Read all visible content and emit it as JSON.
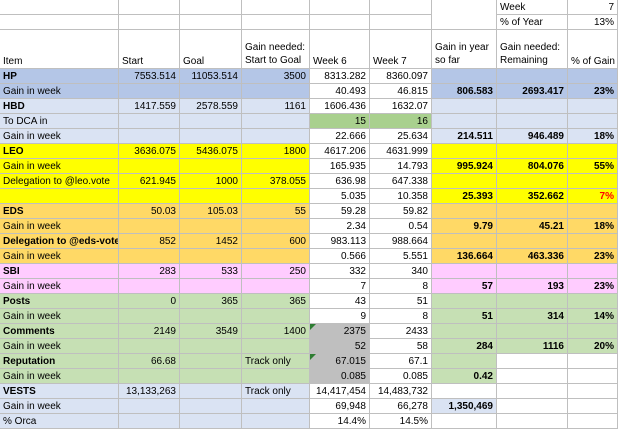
{
  "colors": {
    "blue": "#b4c6e7",
    "lightblue": "#dae3f3",
    "yellow": "#ffff00",
    "orange": "#ffd966",
    "pink": "#ffccff",
    "green": "#c6e0b4",
    "brightgreen": "#a9d08e",
    "gray": "#bfbfbf",
    "white": "#ffffff",
    "red": "#ff0000",
    "gridline": "#bfbfbf"
  },
  "summary": {
    "week_label": "Week",
    "week_value": "7",
    "pct_year_label": "% of Year",
    "pct_year_value": "13%"
  },
  "headers": {
    "item": "Item",
    "start": "Start",
    "goal": "Goal",
    "gain_needed_1": "Gain needed:",
    "gain_needed_2": "Start to Goal",
    "week6": "Week 6",
    "week7": "Week 7",
    "gain_year_1": "Gain in year",
    "gain_year_2": "so far",
    "gain_rem_1": "Gain needed:",
    "gain_rem_2": "Remaining",
    "pct_gain": "% of Gain"
  },
  "rows": [
    {
      "item": "HP",
      "start": "7553.514",
      "goal": "11053.514",
      "needed": "3500",
      "w6": "8313.282",
      "w7": "8360.097",
      "gain_year": "",
      "remaining": "",
      "pct": ""
    },
    {
      "item": "Gain in week",
      "start": "",
      "goal": "",
      "needed": "",
      "w6": "40.493",
      "w7": "46.815",
      "gain_year": "806.583",
      "remaining": "2693.417",
      "pct": "23%"
    },
    {
      "item": "HBD",
      "start": "1417.559",
      "goal": "2578.559",
      "needed": "1161",
      "w6": "1606.436",
      "w7": "1632.07",
      "gain_year": "",
      "remaining": "",
      "pct": ""
    },
    {
      "item": "To DCA in",
      "start": "",
      "goal": "",
      "needed": "",
      "w6": "15",
      "w7": "16",
      "gain_year": "",
      "remaining": "",
      "pct": ""
    },
    {
      "item": "Gain in week",
      "start": "",
      "goal": "",
      "needed": "",
      "w6": "22.666",
      "w7": "25.634",
      "gain_year": "214.511",
      "remaining": "946.489",
      "pct": "18%"
    },
    {
      "item": "LEO",
      "start": "3636.075",
      "goal": "5436.075",
      "needed": "1800",
      "w6": "4617.206",
      "w7": "4631.999",
      "gain_year": "",
      "remaining": "",
      "pct": ""
    },
    {
      "item": "Gain in week",
      "start": "",
      "goal": "",
      "needed": "",
      "w6": "165.935",
      "w7": "14.793",
      "gain_year": "995.924",
      "remaining": "804.076",
      "pct": "55%"
    },
    {
      "item": "Delegation to @leo.vote",
      "start": "621.945",
      "goal": "1000",
      "needed": "378.055",
      "w6": "636.98",
      "w7": "647.338",
      "gain_year": "",
      "remaining": "",
      "pct": ""
    },
    {
      "item": "",
      "start": "",
      "goal": "",
      "needed": "",
      "w6": "5.035",
      "w7": "10.358",
      "gain_year": "25.393",
      "remaining": "352.662",
      "pct": "7%"
    },
    {
      "item": "EDS",
      "start": "50.03",
      "goal": "105.03",
      "needed": "55",
      "w6": "59.28",
      "w7": "59.82",
      "gain_year": "",
      "remaining": "",
      "pct": ""
    },
    {
      "item": "Gain in week",
      "start": "",
      "goal": "",
      "needed": "",
      "w6": "2.34",
      "w7": "0.54",
      "gain_year": "9.79",
      "remaining": "45.21",
      "pct": "18%"
    },
    {
      "item": "Delegation to @eds-vote",
      "start": "852",
      "goal": "1452",
      "needed": "600",
      "w6": "983.113",
      "w7": "988.664",
      "gain_year": "",
      "remaining": "",
      "pct": ""
    },
    {
      "item": "Gain in week",
      "start": "",
      "goal": "",
      "needed": "",
      "w6": "0.566",
      "w7": "5.551",
      "gain_year": "136.664",
      "remaining": "463.336",
      "pct": "23%"
    },
    {
      "item": "SBI",
      "start": "283",
      "goal": "533",
      "needed": "250",
      "w6": "332",
      "w7": "340",
      "gain_year": "",
      "remaining": "",
      "pct": ""
    },
    {
      "item": "Gain in week",
      "start": "",
      "goal": "",
      "needed": "",
      "w6": "7",
      "w7": "8",
      "gain_year": "57",
      "remaining": "193",
      "pct": "23%"
    },
    {
      "item": "Posts",
      "start": "0",
      "goal": "365",
      "needed": "365",
      "w6": "43",
      "w7": "51",
      "gain_year": "",
      "remaining": "",
      "pct": ""
    },
    {
      "item": "Gain in week",
      "start": "",
      "goal": "",
      "needed": "",
      "w6": "9",
      "w7": "8",
      "gain_year": "51",
      "remaining": "314",
      "pct": "14%"
    },
    {
      "item": "Comments",
      "start": "2149",
      "goal": "3549",
      "needed": "1400",
      "w6": "2375",
      "w7": "2433",
      "gain_year": "",
      "remaining": "",
      "pct": ""
    },
    {
      "item": "Gain in week",
      "start": "",
      "goal": "",
      "needed": "",
      "w6": "52",
      "w7": "58",
      "gain_year": "284",
      "remaining": "1116",
      "pct": "20%"
    },
    {
      "item": "Reputation",
      "start": "66.68",
      "goal": "",
      "needed": "Track only",
      "w6": "67.015",
      "w7": "67.1",
      "gain_year": "",
      "remaining": "",
      "pct": ""
    },
    {
      "item": "Gain in week",
      "start": "",
      "goal": "",
      "needed": "",
      "w6": "0.085",
      "w7": "0.085",
      "gain_year": "0.42",
      "remaining": "",
      "pct": ""
    },
    {
      "item": "VESTS",
      "start": "13,133,263",
      "goal": "",
      "needed": "Track only",
      "w6": "14,417,454",
      "w7": "14,483,732",
      "gain_year": "",
      "remaining": "",
      "pct": ""
    },
    {
      "item": "Gain in week",
      "start": "",
      "goal": "",
      "needed": "",
      "w6": "69,948",
      "w7": "66,278",
      "gain_year": "1,350,469",
      "remaining": "",
      "pct": ""
    },
    {
      "item": "% Orca",
      "start": "",
      "goal": "",
      "needed": "",
      "w6": "14.4%",
      "w7": "14.5%",
      "gain_year": "",
      "remaining": "",
      "pct": ""
    }
  ]
}
